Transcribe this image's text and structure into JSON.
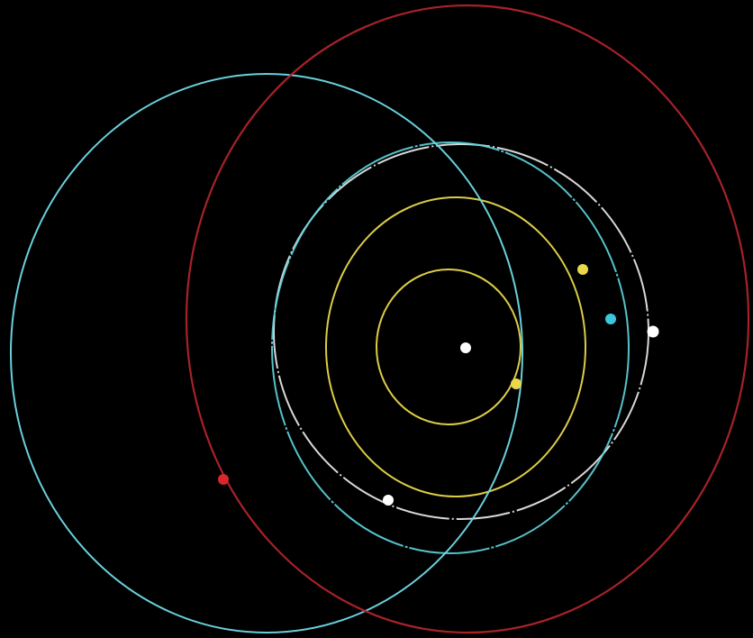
{
  "diagram": {
    "kind": "orbital-system",
    "background_color": "#000000",
    "central_body": {
      "name": "central-star",
      "color": "#ffffff"
    },
    "orbits": [
      {
        "name": "inner-yellow-orbit",
        "color": "#e8d84a"
      },
      {
        "name": "second-yellow-orbit",
        "color": "#e8d84a"
      },
      {
        "name": "white-orbit",
        "color": "#f0f0f0"
      },
      {
        "name": "inner-cyan-orbit",
        "color": "#5fd6e0"
      },
      {
        "name": "outer-cyan-orbit",
        "color": "#6fdbe8"
      },
      {
        "name": "red-orbit",
        "color": "#b0242a"
      }
    ],
    "bodies": [
      {
        "name": "inner-yellow-planet",
        "color": "#e8d84a"
      },
      {
        "name": "second-yellow-planet",
        "color": "#e8d84a"
      },
      {
        "name": "cyan-planet",
        "color": "#3cc8dc"
      },
      {
        "name": "white-planet-right",
        "color": "#ffffff"
      },
      {
        "name": "white-planet-lower",
        "color": "#ffffff"
      },
      {
        "name": "red-planet",
        "color": "#d8282a"
      }
    ]
  }
}
